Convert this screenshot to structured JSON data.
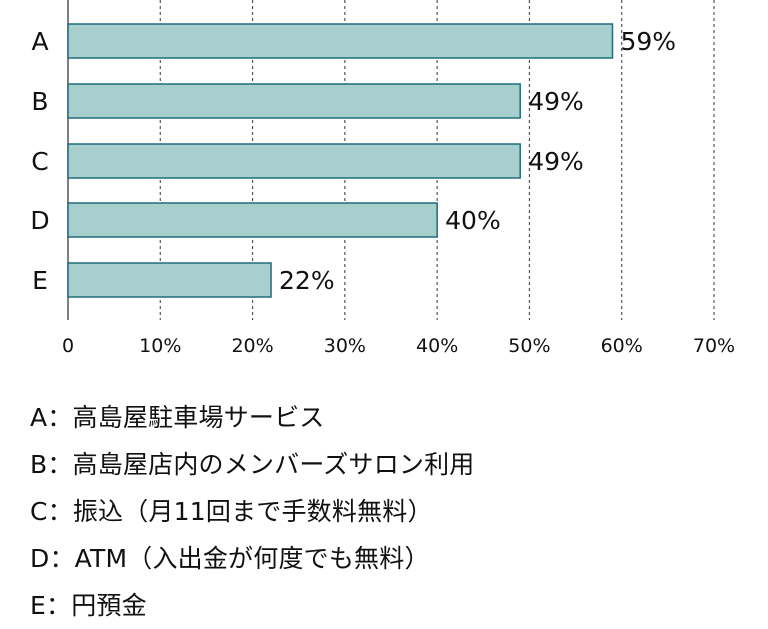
{
  "chart_data": {
    "type": "bar",
    "orientation": "horizontal",
    "categories": [
      "A",
      "B",
      "C",
      "D",
      "E"
    ],
    "values": [
      59,
      49,
      49,
      40,
      22
    ],
    "value_labels": [
      "59%",
      "49%",
      "49%",
      "40%",
      "22%"
    ],
    "x_ticks": [
      "0",
      "10%",
      "20%",
      "30%",
      "40%",
      "50%",
      "60%",
      "70%"
    ],
    "xlim": [
      0,
      70
    ],
    "grid": "vertical dashed",
    "bar_color": "#a7cfcd",
    "bar_edge_color": "#1f6d7d"
  },
  "legend": [
    {
      "text": "A：高島屋駐車場サービス"
    },
    {
      "text": "B：高島屋店内のメンバーズサロン利用"
    },
    {
      "text": "C：振込（月11回まで手数料無料）"
    },
    {
      "text": "D：ATM（入出金が何度でも無料）"
    },
    {
      "text": "E：円預金"
    }
  ]
}
